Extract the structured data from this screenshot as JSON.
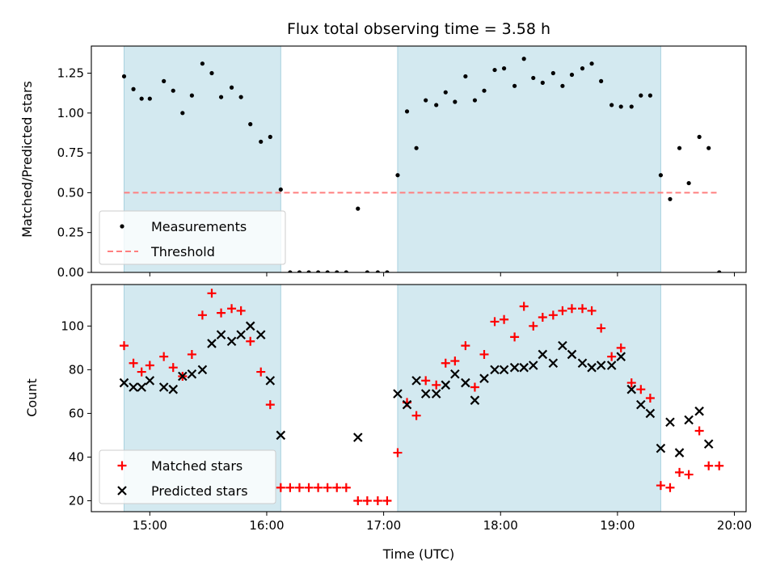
{
  "chart_data": [
    {
      "type": "scatter",
      "title": "Flux total observing time = 3.58 h",
      "ylabel": "Matched/Predicted stars",
      "xlabel": "",
      "x_range_hours": [
        14.5,
        20.1
      ],
      "ylim": [
        0,
        1.42
      ],
      "yticks": [
        0,
        0.25,
        0.5,
        0.75,
        1.0,
        1.25
      ],
      "ytick_labels": [
        "0.00",
        "0.25",
        "0.50",
        "0.75",
        "1.00",
        "1.25"
      ],
      "shaded_spans": [
        [
          14.78,
          16.12
        ],
        [
          17.12,
          19.37
        ]
      ],
      "shade_color": "#d3e9f0",
      "legend": {
        "position": "lower-left",
        "entries": [
          "Measurements",
          "Threshold"
        ]
      },
      "threshold": {
        "name": "Threshold",
        "value": 0.5,
        "x": [
          14.78,
          19.87
        ],
        "color": "#ff7f7f"
      },
      "series": [
        {
          "name": "Measurements",
          "color": "#000000",
          "x": [
            14.78,
            14.86,
            14.93,
            15.0,
            15.12,
            15.2,
            15.28,
            15.36,
            15.45,
            15.53,
            15.61,
            15.7,
            15.78,
            15.86,
            15.95,
            16.03,
            16.12,
            16.2,
            16.28,
            16.36,
            16.44,
            16.52,
            16.6,
            16.68,
            16.78,
            16.86,
            16.95,
            17.03,
            17.12,
            17.2,
            17.28,
            17.36,
            17.45,
            17.53,
            17.61,
            17.7,
            17.78,
            17.86,
            17.95,
            18.03,
            18.12,
            18.2,
            18.28,
            18.36,
            18.45,
            18.53,
            18.61,
            18.7,
            18.78,
            18.86,
            18.95,
            19.03,
            19.12,
            19.2,
            19.28,
            19.37,
            19.45,
            19.53,
            19.61,
            19.7,
            19.78,
            19.87
          ],
          "y": [
            1.23,
            1.15,
            1.09,
            1.09,
            1.2,
            1.14,
            1.0,
            1.11,
            1.31,
            1.25,
            1.1,
            1.16,
            1.1,
            0.93,
            0.82,
            0.85,
            0.52,
            0,
            0,
            0,
            0,
            0,
            0,
            0,
            0.4,
            0,
            0,
            0,
            0.61,
            1.01,
            0.78,
            1.08,
            1.05,
            1.13,
            1.07,
            1.23,
            1.08,
            1.14,
            1.27,
            1.28,
            1.17,
            1.34,
            1.22,
            1.19,
            1.25,
            1.17,
            1.24,
            1.28,
            1.31,
            1.2,
            1.05,
            1.04,
            1.04,
            1.11,
            1.11,
            0.61,
            0.46,
            0.78,
            0.56,
            0.85,
            0.78,
            0
          ]
        }
      ]
    },
    {
      "type": "scatter",
      "xlabel": "Time (UTC)",
      "ylabel": "Count",
      "x_range_hours": [
        14.5,
        20.1
      ],
      "ylim": [
        15,
        119
      ],
      "yticks": [
        20,
        40,
        60,
        80,
        100
      ],
      "xticks_hours": [
        15,
        16,
        17,
        18,
        19,
        20
      ],
      "xtick_labels": [
        "15:00",
        "16:00",
        "17:00",
        "18:00",
        "19:00",
        "20:00"
      ],
      "shaded_spans": [
        [
          14.78,
          16.12
        ],
        [
          17.12,
          19.37
        ]
      ],
      "shade_color": "#d3e9f0",
      "legend": {
        "position": "lower-left",
        "entries": [
          "Matched stars",
          "Predicted stars"
        ]
      },
      "series": [
        {
          "name": "Matched stars",
          "marker": "plus",
          "color": "#ff0000",
          "x": [
            14.78,
            14.86,
            14.93,
            15.0,
            15.12,
            15.2,
            15.28,
            15.36,
            15.45,
            15.53,
            15.61,
            15.7,
            15.78,
            15.86,
            15.95,
            16.03,
            16.12,
            16.2,
            16.28,
            16.36,
            16.44,
            16.52,
            16.6,
            16.68,
            16.78,
            16.86,
            16.95,
            17.03,
            17.12,
            17.2,
            17.28,
            17.36,
            17.45,
            17.53,
            17.61,
            17.7,
            17.78,
            17.86,
            17.95,
            18.03,
            18.12,
            18.2,
            18.28,
            18.36,
            18.45,
            18.53,
            18.61,
            18.7,
            18.78,
            18.86,
            18.95,
            19.03,
            19.12,
            19.2,
            19.28,
            19.37,
            19.45,
            19.53,
            19.61,
            19.7,
            19.78,
            19.87
          ],
          "y": [
            91,
            83,
            79,
            82,
            86,
            81,
            77,
            87,
            105,
            115,
            106,
            108,
            107,
            93,
            79,
            64,
            26,
            26,
            26,
            26,
            26,
            26,
            26,
            26,
            20,
            20,
            20,
            20,
            42,
            65,
            59,
            75,
            73,
            83,
            84,
            91,
            72,
            87,
            102,
            103,
            95,
            109,
            100,
            104,
            105,
            107,
            108,
            108,
            107,
            99,
            86,
            90,
            74,
            71,
            67,
            27,
            26,
            33,
            32,
            52,
            36,
            36
          ]
        },
        {
          "name": "Predicted stars",
          "marker": "x",
          "color": "#000000",
          "x": [
            14.78,
            14.86,
            14.93,
            15.0,
            15.12,
            15.2,
            15.28,
            15.36,
            15.45,
            15.53,
            15.61,
            15.7,
            15.78,
            15.86,
            15.95,
            16.03,
            16.12,
            16.78,
            17.12,
            17.2,
            17.28,
            17.36,
            17.45,
            17.53,
            17.61,
            17.7,
            17.78,
            17.86,
            17.95,
            18.03,
            18.12,
            18.2,
            18.28,
            18.36,
            18.45,
            18.53,
            18.61,
            18.7,
            18.78,
            18.86,
            18.95,
            19.03,
            19.12,
            19.2,
            19.28,
            19.37,
            19.45,
            19.53,
            19.61,
            19.7,
            19.78
          ],
          "y": [
            74,
            72,
            72,
            75,
            72,
            71,
            77,
            78,
            80,
            92,
            96,
            93,
            96,
            100,
            96,
            75,
            50,
            49,
            69,
            64,
            75,
            69,
            69,
            73,
            78,
            74,
            66,
            76,
            80,
            80,
            81,
            81,
            82,
            87,
            83,
            91,
            87,
            83,
            81,
            82,
            82,
            86,
            71,
            64,
            60,
            44,
            56,
            42,
            57,
            61,
            46
          ]
        }
      ]
    }
  ]
}
